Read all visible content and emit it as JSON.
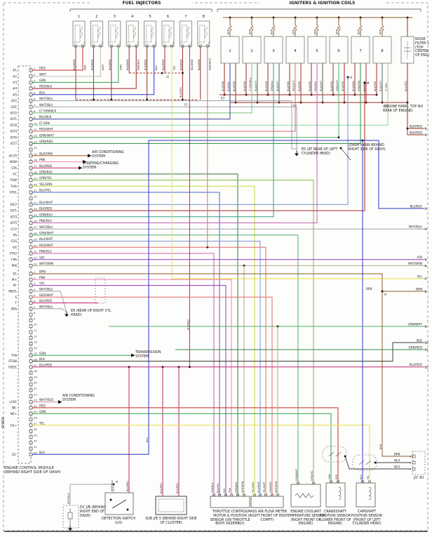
{
  "sheet_id": "6H805",
  "titles": {
    "fuel_injectors": "FUEL INJECTORS",
    "igniters": "IGNITERS & IGNITION COILS"
  },
  "palette": {
    "RED": "#cc2929",
    "WHT": "#bdbdbd",
    "GRN": "#33a04d",
    "RED/BLK": "#992222",
    "BLU": "#2b35c8",
    "WHT/BLU": "#9aa3b5",
    "LT GRN/BLK": "#76c57e",
    "BLU/BLK": "#3a3f8f",
    "LT GRN": "#8fd49a",
    "RED/WHT": "#e06a6a",
    "GRN/WHT": "#4fae68",
    "GRN/RED": "#2f8747",
    "BLK/ORN": "#a35c1c",
    "PNK": "#ee82b4",
    "BLU/RED": "#c22470",
    "GRN/BLK": "#2c7a40",
    "GRN/YEL": "#7fb93d",
    "YEL/GRN": "#c9d646",
    "BLU/YEL": "#4a62c9",
    "BLU/WHT": "#7d8fd0",
    "BLK/RED": "#9e2b25",
    "GRN/BLU": "#2f9e86",
    "PNK/BLU": "#c75fb1",
    "VIO": "#8f37c4",
    "WHT/BRN": "#b5a48c",
    "BRN": "#8a5a2b",
    "BLK": "#3a3a3a",
    "WHT/RED": "#cf8f8f",
    "YEL": "#e9df3d",
    "BLK/WHT": "#5a5a5a",
    "BRN/WHT": "#a97e4f",
    "YEL/WHT": "#d9cd70",
    "NCA": "#444444"
  },
  "ecm": {
    "label": "ENGINE CONTROL MODULE (BEHIND RIGHT SIDE OF DASH)",
    "block1": [
      {
        "n": "1",
        "pin": "#1",
        "wire": "RED"
      },
      {
        "n": "2",
        "pin": "#2",
        "wire": "WHT"
      },
      {
        "n": "3",
        "pin": "#3",
        "wire": "GRN"
      },
      {
        "n": "4",
        "pin": "#4",
        "wire": "RED/BLK"
      },
      {
        "n": "5",
        "pin": "#5",
        "wire": "BLU"
      },
      {
        "n": "6",
        "pin": "E02",
        "wire": "WHT/BLU"
      },
      {
        "n": "7",
        "pin": "E01",
        "wire": "WHT/BLU"
      },
      {
        "n": "8",
        "pin": "IGT2",
        "wire": "LT GRN/BLK"
      },
      {
        "n": "9",
        "pin": "IGT1",
        "wire": "BLU/BLK"
      },
      {
        "n": "10",
        "pin": "IGT8",
        "wire": "LT GRN"
      },
      {
        "n": "11",
        "pin": "IGT4",
        "wire": "RED/WHT"
      },
      {
        "n": "12",
        "pin": "IGT6",
        "wire": "GRN/WHT"
      },
      {
        "n": "13",
        "pin": "IGT7",
        "wire": "GRN/RED"
      },
      {
        "n": "14",
        "pin": "",
        "wire": ""
      },
      {
        "n": "15",
        "pin": "ACCR",
        "wire": "BLK/ORN"
      },
      {
        "n": "16",
        "pin": "NSW",
        "wire": "PNK"
      },
      {
        "n": "17",
        "pin": "STA",
        "wire": "BLU/RED"
      },
      {
        "n": "18",
        "pin": "VC",
        "wire": "GRN/BLK"
      },
      {
        "n": "19",
        "pin": "THW",
        "wire": "GRN/YEL"
      },
      {
        "n": "20",
        "pin": "THA",
        "wire": "YEL/GRN"
      },
      {
        "n": "21",
        "pin": "VTA1",
        "wire": "BLU/YEL"
      },
      {
        "n": "22",
        "pin": "",
        "wire": ""
      },
      {
        "n": "23",
        "pin": "IGF2",
        "wire": "BLU/WHT"
      },
      {
        "n": "24",
        "pin": "IGF1",
        "wire": "BLK/RED"
      },
      {
        "n": "25",
        "pin": "IGT3",
        "wire": "GRN/BLU"
      },
      {
        "n": "26",
        "pin": "IGT5",
        "wire": "PNK/BLU"
      },
      {
        "n": "27",
        "pin": "CCV",
        "wire": "WHT/BLU"
      },
      {
        "n": "28",
        "pin": "PS",
        "wire": "GRN/WHT"
      },
      {
        "n": "29",
        "pin": "E2S",
        "wire": "BLU/WHT"
      },
      {
        "n": "30",
        "pin": "VG",
        "wire": "RED/WHT"
      },
      {
        "n": "31",
        "pin": "VTA2",
        "wire": "PNK/BLU"
      },
      {
        "n": "32",
        "pin": "FPR",
        "wire": "VIO"
      },
      {
        "n": "33",
        "pin": "PIM",
        "wire": "WHT/BRN"
      }
    ],
    "block2": [
      {
        "n": "1",
        "pin": "E1",
        "wire": "BRN"
      },
      {
        "n": "2",
        "pin": "M+",
        "wire": "PNK"
      },
      {
        "n": "3",
        "pin": "M-",
        "wire": "VIO"
      },
      {
        "n": "4",
        "pin": "ME01",
        "wire": "WHT/BLU"
      },
      {
        "n": "5",
        "pin": "S",
        "wire": "RED/WHT"
      },
      {
        "n": "6",
        "pin": "T",
        "wire": "BLU/RED"
      },
      {
        "n": "7",
        "pin": "BSS",
        "wire": "WHT/BLU"
      },
      {
        "n": "8",
        "pin": "",
        "wire": ""
      },
      {
        "n": "9",
        "pin": "",
        "wire": ""
      },
      {
        "n": "10",
        "pin": "",
        "wire": ""
      },
      {
        "n": "11",
        "pin": "",
        "wire": ""
      },
      {
        "n": "12",
        "pin": "",
        "wire": ""
      },
      {
        "n": "13",
        "pin": "",
        "wire": ""
      },
      {
        "n": "14",
        "pin": "",
        "wire": ""
      },
      {
        "n": "15",
        "pin": "TFN",
        "wire": "GRN"
      },
      {
        "n": "16",
        "pin": "STSW",
        "wire": "BLK"
      },
      {
        "n": "17",
        "pin": "OED1",
        "wire": "BLU/RED"
      },
      {
        "n": "18",
        "pin": "",
        "wire": ""
      },
      {
        "n": "19",
        "pin": "",
        "wire": ""
      },
      {
        "n": "20",
        "pin": "",
        "wire": ""
      },
      {
        "n": "21",
        "pin": "",
        "wire": ""
      },
      {
        "n": "22",
        "pin": "",
        "wire": ""
      },
      {
        "n": "23",
        "pin": "LCK1",
        "wire": "WHT/RED"
      },
      {
        "n": "24",
        "pin": "NE-",
        "wire": "RED"
      },
      {
        "n": "25",
        "pin": "NE+",
        "wire": "GRN"
      },
      {
        "n": "26",
        "pin": "",
        "wire": ""
      },
      {
        "n": "27",
        "pin": "G2+",
        "wire": "YEL"
      },
      {
        "n": "28",
        "pin": "",
        "wire": ""
      },
      {
        "n": "29",
        "pin": "",
        "wire": ""
      },
      {
        "n": "30",
        "pin": "",
        "wire": ""
      },
      {
        "n": "31",
        "pin": "",
        "wire": ""
      },
      {
        "n": "32",
        "pin": "G2-",
        "wire": "BLU"
      }
    ]
  },
  "injectors": {
    "common_wire": "BLK/RED",
    "pin1": "1",
    "pin2": "2",
    "junction_upper": "I2",
    "junction_lower": "I3",
    "items": [
      {
        "num": "1",
        "wire": "RED"
      },
      {
        "num": "2",
        "wire": "WHT"
      },
      {
        "num": "3",
        "wire": "GRN"
      },
      {
        "num": "4",
        "wire": "RED/BLK"
      },
      {
        "num": "5",
        "wire": "BLU"
      },
      {
        "num": "6",
        "wire": "YEL"
      },
      {
        "num": "7",
        "wire": "BLU/RED"
      },
      {
        "num": "8",
        "wire": "RED/WHT"
      }
    ]
  },
  "coils": {
    "top_wire": "BRN",
    "bus_labels": [
      "E3",
      "E2",
      "E2"
    ],
    "items": [
      {
        "num": "1",
        "leads": [
          "BLK/RED",
          "BLU/BLK",
          "BLK/RED"
        ]
      },
      {
        "num": "2",
        "leads": [
          "BLK/RED",
          "LT GRN/BLK",
          "BLK/WHT"
        ]
      },
      {
        "num": "3",
        "leads": [
          "BLK/RED",
          "GRN/BLU",
          "BLK/WHT"
        ]
      },
      {
        "num": "4",
        "leads": [
          "BLK/RED",
          "RED/WHT",
          "BLK/RED"
        ]
      },
      {
        "num": "5",
        "leads": [
          "BLK/RED",
          "PNK/BLU",
          "BLK/WHT"
        ]
      },
      {
        "num": "6",
        "leads": [
          "BLK/RED",
          "GRN/WHT",
          "BLK/RED"
        ]
      },
      {
        "num": "7",
        "leads": [
          "BLK/RED",
          "GRN/RED",
          "BLK/RED"
        ]
      },
      {
        "num": "8",
        "leads": [
          "BLK/RED",
          "BLK/WHT",
          "LT GRN"
        ]
      }
    ]
  },
  "noise_filter": {
    "label": "NOISE FILTER 1 (TOP CENTER OF ENG)",
    "wire": "BLK/RED"
  },
  "notes": {
    "engine_harn": "(ENGINE HARN, TOP NO REAR OF ENGINE)",
    "dash_harn": "(DASH HARN BEHIND RIGHT SIDE OF DASH)",
    "e5": "E5 (AT REAR OF LEFT CYLINDER HEAD)",
    "e8": "E8 (REAR OF RIGHT CYL HEAD)"
  },
  "arrows": {
    "ac1": "AIR CONDITIONING SYSTEM",
    "start_chg": "STARTING/CHARGING SYSTEM",
    "trans": "TRANSMISSION SYSTEM",
    "ac2": "AIR CONDITIONING SYSTEM"
  },
  "junction_labels": {
    "i2": "I2",
    "i3": "I3",
    "e2": "E2",
    "e3": "E3",
    "h": "H",
    "m": "M"
  },
  "right_stubs": [
    {
      "n": "1",
      "wire": "BLK/RED"
    },
    {
      "n": "2",
      "wire": "BLK/RED"
    },
    {
      "n": "3",
      "wire": "BLU/BLK"
    },
    {
      "n": "4",
      "wire": "WHT/BLU"
    },
    {
      "n": "5",
      "wire": "VIO"
    },
    {
      "n": "6",
      "wire": "WHT/BRN"
    },
    {
      "n": "7",
      "wire": "YEL"
    },
    {
      "n": "8",
      "wire": "BRN"
    },
    {
      "n": "9",
      "wire": "GRN/WHT"
    },
    {
      "n": "10",
      "wire": "BLK"
    },
    {
      "n": "11",
      "wire": "GRN/RED"
    },
    {
      "n": "12",
      "wire": "BLU/RED"
    }
  ],
  "jc40": {
    "label": "J/C 40",
    "pin": "A",
    "wires": [
      "BRN",
      "NCA",
      "NCA"
    ]
  },
  "bottom": {
    "dcjb": {
      "label": "DC J/B (BEHIND RIGHT END OF DASH)",
      "wires": [
        "WHT/BLU"
      ]
    },
    "detection": {
      "label": "DETECTION SWITCH (LH)",
      "wires": [
        "WHT/BLU",
        "BLU/RED"
      ]
    },
    "subjb3": {
      "label": "SUB J/B 3 (BEHIND RIGHT SIDE OF CLUSTER)",
      "wires": [
        "BLU/RED",
        "BLU/RED"
      ]
    },
    "throttle": {
      "label": "THROTTLE CONTROL MOTOR & POSITION SENSOR (ON THROTTLE BODY ASSEMBLY)",
      "wires": [
        "PNK/BLU",
        "BLU/YEL",
        "VIO",
        "PNK",
        "GRN/BLU",
        "WHT/BRN"
      ]
    },
    "maf": {
      "label": "MASS AIR FLOW METER (RIGHT FRONT OF ENG COMPT)",
      "wires": [
        "YEL/GRN",
        "BLU/WHT",
        "YEL/WHT",
        "GRN/RED",
        "WHT/BRN"
      ]
    },
    "ect": {
      "label": "ENGINE COOLANT TEMPERATURE SENSOR (RIGHT FRONT OF ENGINE)",
      "wires": [
        "GRN/WHT",
        "GRN/YEL"
      ]
    },
    "ckp": {
      "label": "CRANKSHAFT POSITION SENSOR (LOWER FRONT OF ENGINE)",
      "wires": [
        "GRN",
        "RED"
      ]
    },
    "cmp": {
      "label": "CAMSHAFT POSITION SENSOR (FRONT OF LEFT CYLINDER HEAD)",
      "wires": [
        "BLU",
        "YEL"
      ]
    }
  }
}
